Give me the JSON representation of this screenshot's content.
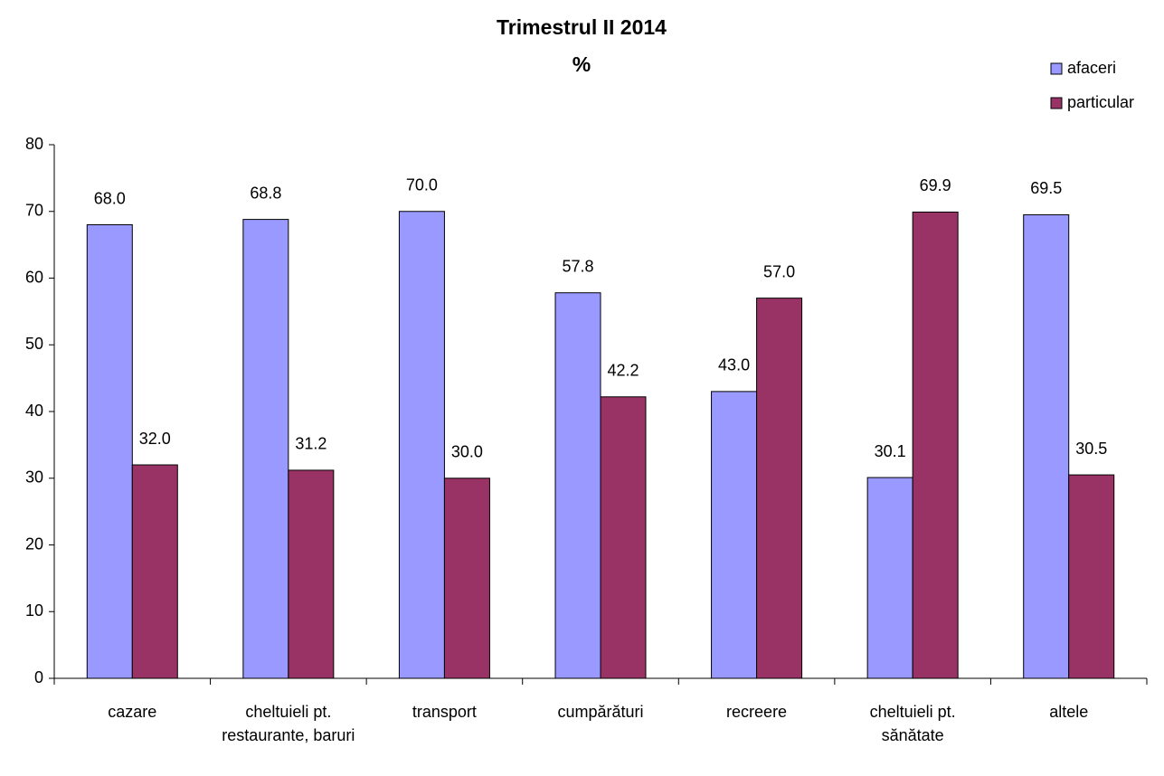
{
  "chart_data": {
    "type": "bar",
    "title": "Trimestrul II 2014",
    "subtitle": "%",
    "categories": [
      "cazare",
      "cheltuieli pt. restaurante, baruri",
      "transport",
      "cumpărături",
      "recreere",
      "cheltuieli pt. sănătate",
      "altele"
    ],
    "series": [
      {
        "name": "afaceri",
        "color": "#9999ff",
        "values": [
          68,
          68.8,
          70,
          57.8,
          43,
          30.1,
          69.5
        ],
        "value_labels": [
          "68.0",
          "68.8",
          "70.0",
          "57.8",
          "43.0",
          "30.1",
          "69.5"
        ]
      },
      {
        "name": "particular",
        "color": "#993366",
        "values": [
          32,
          31.2,
          30,
          42.2,
          57,
          69.9,
          30.5
        ],
        "value_labels": [
          "32.0",
          "31.2",
          "30.0",
          "42.2",
          "57.0",
          "69.9",
          "30.5"
        ]
      }
    ],
    "ylim": [
      0,
      80
    ],
    "yticks": [
      0,
      10,
      20,
      30,
      40,
      50,
      60,
      70,
      80
    ],
    "legend": "top-right"
  }
}
